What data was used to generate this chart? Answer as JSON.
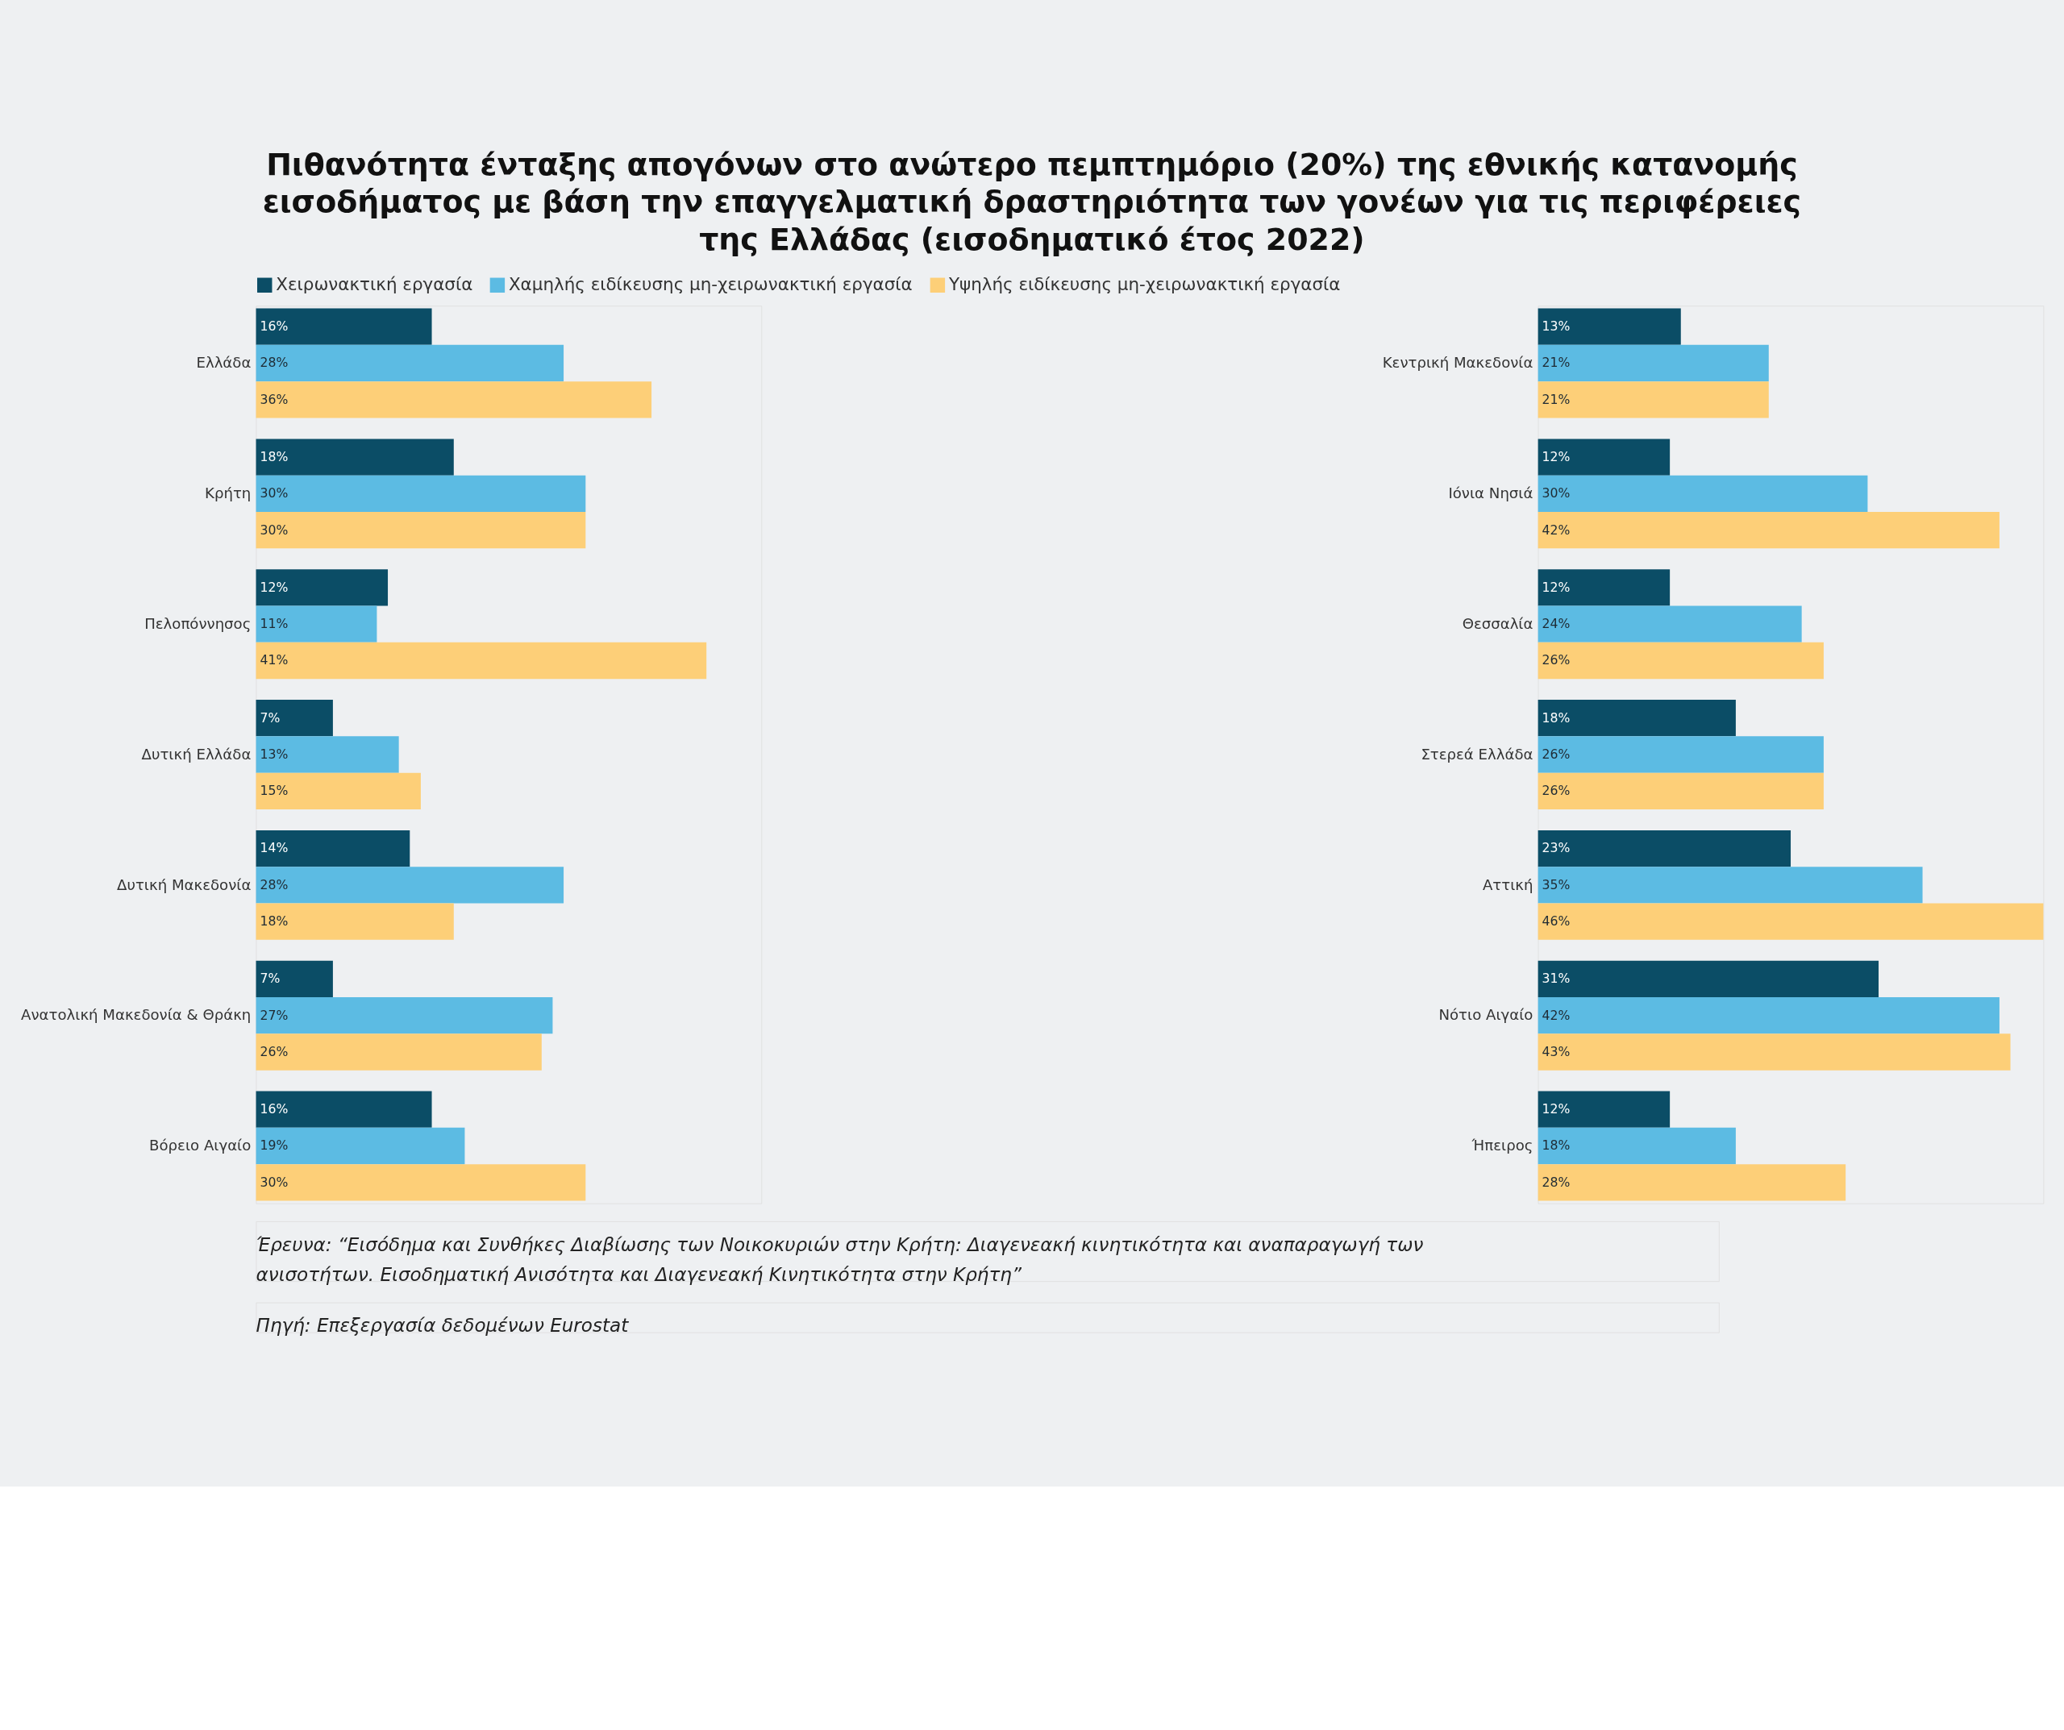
{
  "chart_data": [
    {
      "type": "bar",
      "orientation": "horizontal",
      "title": "Πιθανότητα ένταξης απογόνων στο ανώτερο πεμπτημόριο (20%) της εθνικής κατανομής εισοδήματος με βάση την επαγγελματική δραστηριότητα των γονέων για τις περιφέρειες της Ελλάδας (εισοδηματικό έτος 2022)",
      "legend": "top",
      "tick_labels": "y",
      "categories": [
        "Ελλάδα",
        "Κρήτη",
        "Πελοπόννησος",
        "Δυτική Ελλάδα",
        "Δυτική Μακεδονία",
        "Ανατολική Μακεδονία & Θράκη",
        "Βόρειο Αιγαίο"
      ],
      "series": [
        {
          "name": "Χειρωνακτική εργασία",
          "color": "#0b4d66",
          "values": [
            16,
            18,
            12,
            7,
            14,
            7,
            16
          ],
          "value_labels": [
            "16%",
            "18%",
            "12%",
            "7%",
            "14%",
            "7%",
            "16%"
          ]
        },
        {
          "name": "Χαμηλής ειδίκευσης μη-χειρωνακτική εργασία",
          "color": "#5cbbe3",
          "values": [
            28,
            30,
            11,
            13,
            28,
            27,
            19
          ],
          "value_labels": [
            "28%",
            "30%",
            "11%",
            "13%",
            "28%",
            "27%",
            "19%"
          ]
        },
        {
          "name": "Υψηλής ειδίκευσης μη-χειρωνακτική εργασία",
          "color": "#fdcf78",
          "values": [
            36,
            30,
            41,
            15,
            18,
            26,
            30
          ],
          "value_labels": [
            "36%",
            "30%",
            "41%",
            "15%",
            "18%",
            "26%",
            "30%"
          ]
        }
      ],
      "annotations": [
        "Έρευνα: “Εισόδημα και Συνθήκες Διαβίωσης των Νοικοκυριών στην Κρήτη: Διαγενεακή κινητικότητα και αναπαραγωγή των ανισοτήτων. Εισοδηματική Ανισότητα και Διαγενεακή  Κινητικότητα στην Κρήτη”",
        "Πηγή: Επεξεργασία δεδομένων Eurostat"
      ]
    },
    {
      "type": "bar",
      "orientation": "horizontal",
      "tick_labels": "y",
      "categories": [
        "Κεντρική Μακεδονία",
        "Ιόνια Νησιά",
        "Θεσσαλία",
        "Στερεά Ελλάδα",
        "Αττική",
        "Νότιο Αιγαίο",
        "Ήπειρος"
      ],
      "series": [
        {
          "color": "#0b4d66",
          "values": [
            13,
            12,
            12,
            18,
            23,
            31,
            12
          ],
          "value_labels": [
            "13%",
            "12%",
            "12%",
            "18%",
            "23%",
            "31%",
            "12%"
          ]
        },
        {
          "color": "#5cbbe3",
          "values": [
            21,
            30,
            24,
            26,
            35,
            42,
            18
          ],
          "value_labels": [
            "21%",
            "30%",
            "24%",
            "26%",
            "35%",
            "42%",
            "18%"
          ]
        },
        {
          "color": "#fdcf78",
          "values": [
            21,
            42,
            26,
            26,
            46,
            43,
            28
          ],
          "value_labels": [
            "21%",
            "42%",
            "26%",
            "26%",
            "46%",
            "43%",
            "28%"
          ]
        }
      ]
    }
  ]
}
